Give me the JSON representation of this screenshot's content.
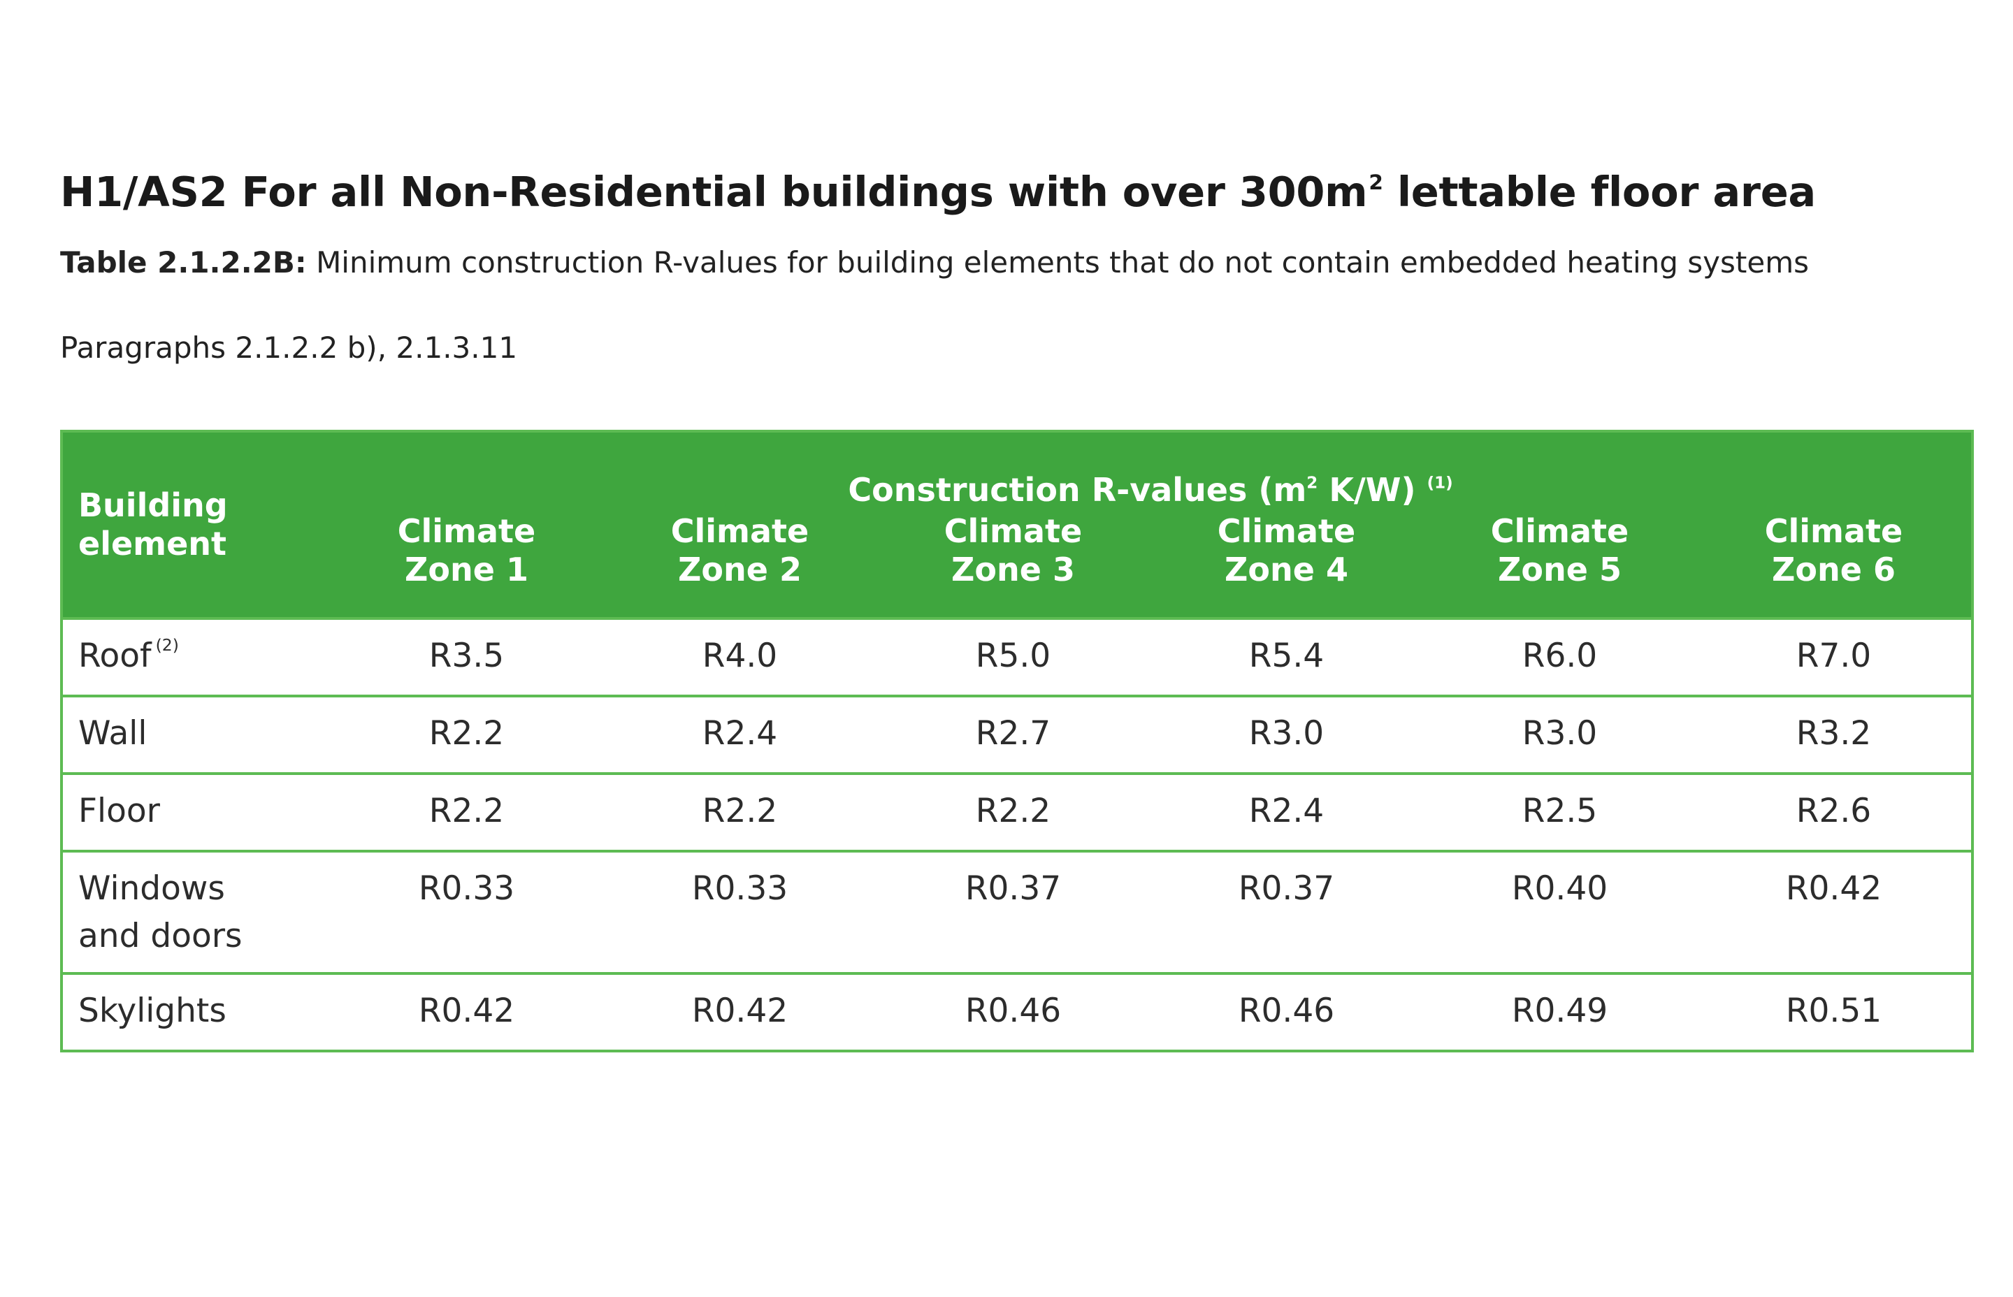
{
  "heading": {
    "text": "H1/AS2 For all Non-Residential  buildings with over 300m",
    "superscript": "2",
    "text_after": " lettable floor area"
  },
  "caption": {
    "label": "Table 2.1.2.2B:",
    "text": " Minimum construction R-values for building elements that do not contain embedded heating systems"
  },
  "paragraphs": "Paragraphs 2.1.2.2 b), 2.1.3.11",
  "table": {
    "element_header": "Building element",
    "group_header": {
      "text_before": "Construction R-values (m",
      "superscript": "2",
      "text_after": " K/W)",
      "footnote": "(1)"
    },
    "zones": [
      {
        "line1": "Climate",
        "line2": "Zone 1"
      },
      {
        "line1": "Climate",
        "line2": "Zone 2"
      },
      {
        "line1": "Climate",
        "line2": "Zone 3"
      },
      {
        "line1": "Climate",
        "line2": "Zone 4"
      },
      {
        "line1": "Climate",
        "line2": "Zone 5"
      },
      {
        "line1": "Climate",
        "line2": "Zone 6"
      }
    ],
    "rows": [
      {
        "element": "Roof",
        "footnote": "(2)",
        "values": [
          "R3.5",
          "R4.0",
          "R5.0",
          "R5.4",
          "R6.0",
          "R7.0"
        ]
      },
      {
        "element": "Wall",
        "footnote": "",
        "values": [
          "R2.2",
          "R2.4",
          "R2.7",
          "R3.0",
          "R3.0",
          "R3.2"
        ]
      },
      {
        "element": "Floor",
        "footnote": "",
        "values": [
          "R2.2",
          "R2.2",
          "R2.2",
          "R2.4",
          "R2.5",
          "R2.6"
        ]
      },
      {
        "element": "Windows",
        "element_line2": "and doors",
        "footnote": "",
        "values": [
          "R0.33",
          "R0.33",
          "R0.37",
          "R0.37",
          "R0.40",
          "R0.42"
        ]
      },
      {
        "element": "Skylights",
        "footnote": "",
        "values": [
          "R0.42",
          "R0.42",
          "R0.46",
          "R0.46",
          "R0.49",
          "R0.51"
        ]
      }
    ],
    "colors": {
      "header_bg": "#3fa63e",
      "border": "#5dbb53",
      "header_text": "#ffffff"
    }
  }
}
